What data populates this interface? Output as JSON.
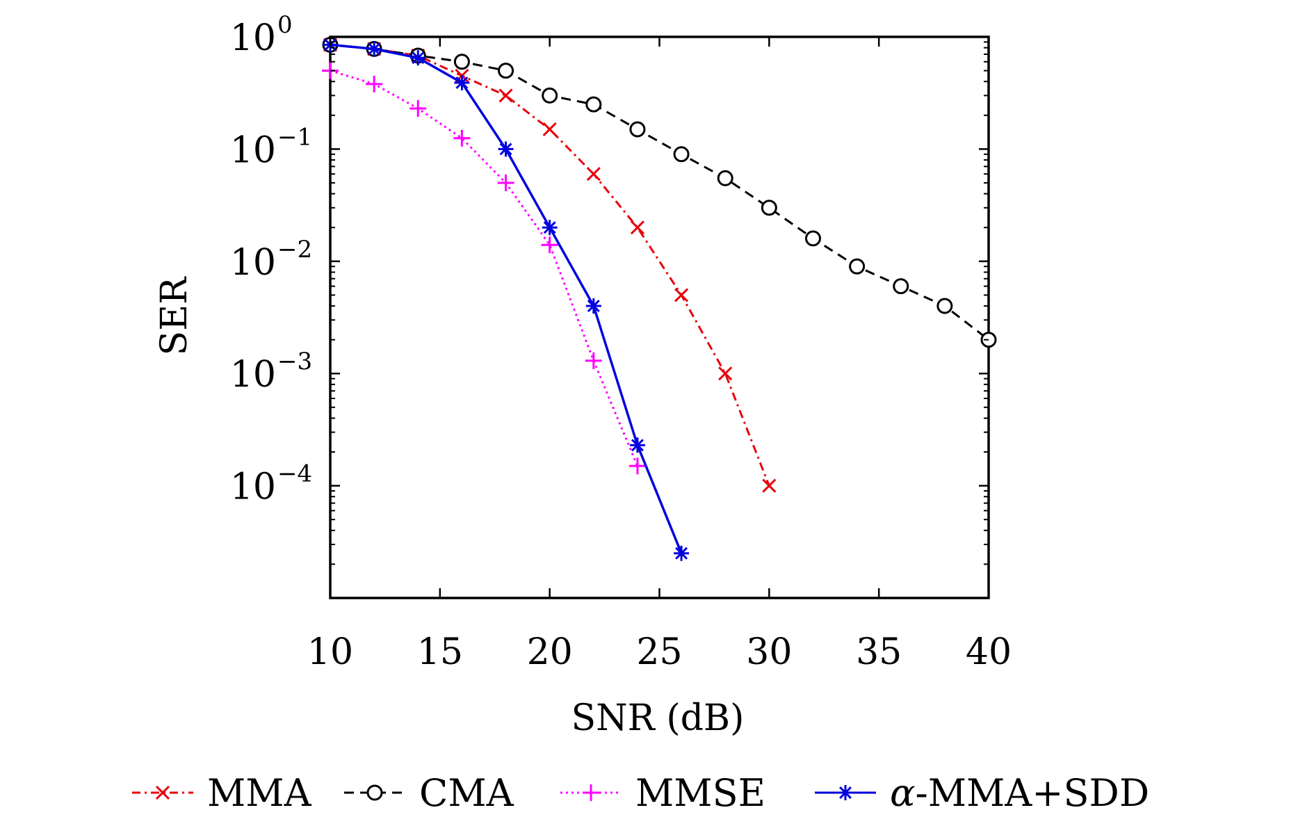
{
  "chart_data": {
    "type": "line",
    "title": "",
    "xlabel": "SNR (dB)",
    "ylabel": "SER",
    "xlim": [
      10,
      40
    ],
    "ylim": [
      1e-05,
      1
    ],
    "yscale": "log",
    "grid": false,
    "legend_position": "bottom",
    "x_ticks": [
      10,
      15,
      20,
      25,
      30,
      35,
      40
    ],
    "x_tick_labels": [
      "10",
      "15",
      "20",
      "25",
      "30",
      "35",
      "40"
    ],
    "y_ticks": [
      1,
      0.1,
      0.01,
      0.001,
      0.0001
    ],
    "y_tick_labels": [
      {
        "base": "10",
        "exp": "0"
      },
      {
        "base": "10",
        "exp": "−1"
      },
      {
        "base": "10",
        "exp": "−2"
      },
      {
        "base": "10",
        "exp": "−3"
      },
      {
        "base": "10",
        "exp": "−4"
      }
    ],
    "series": [
      {
        "name": "MMA",
        "label_parts": [
          "",
          "MMA"
        ],
        "color": "#e8000b",
        "dash": "dashdot",
        "marker": "x",
        "x": [
          10,
          12,
          14,
          16,
          18,
          20,
          22,
          24,
          26,
          28,
          30
        ],
        "values": [
          0.85,
          0.78,
          0.68,
          0.45,
          0.3,
          0.15,
          0.06,
          0.02,
          0.005,
          0.001,
          0.0001
        ]
      },
      {
        "name": "CMA",
        "label_parts": [
          "",
          "CMA"
        ],
        "color": "#000000",
        "dash": "dashed",
        "marker": "circle",
        "x": [
          10,
          12,
          14,
          16,
          18,
          20,
          22,
          24,
          26,
          28,
          30,
          32,
          34,
          36,
          38,
          40
        ],
        "values": [
          0.85,
          0.78,
          0.68,
          0.6,
          0.5,
          0.3,
          0.25,
          0.15,
          0.09,
          0.055,
          0.03,
          0.016,
          0.009,
          0.006,
          0.004,
          0.002
        ]
      },
      {
        "name": "MMSE",
        "label_parts": [
          "",
          "MMSE"
        ],
        "color": "#ff00ff",
        "dash": "dotted",
        "marker": "plus",
        "x": [
          10,
          12,
          14,
          16,
          18,
          20,
          22,
          24
        ],
        "values": [
          0.5,
          0.38,
          0.23,
          0.125,
          0.05,
          0.014,
          0.0013,
          0.00015
        ]
      },
      {
        "name": "α-MMA+SDD",
        "label_parts": [
          "α",
          "-MMA+SDD"
        ],
        "color": "#0000e0",
        "dash": "solid",
        "marker": "asterisk",
        "x": [
          10,
          12,
          14,
          16,
          18,
          20,
          22,
          24,
          26
        ],
        "values": [
          0.85,
          0.78,
          0.65,
          0.39,
          0.1,
          0.02,
          0.004,
          0.00023,
          2.5e-05
        ]
      }
    ]
  }
}
